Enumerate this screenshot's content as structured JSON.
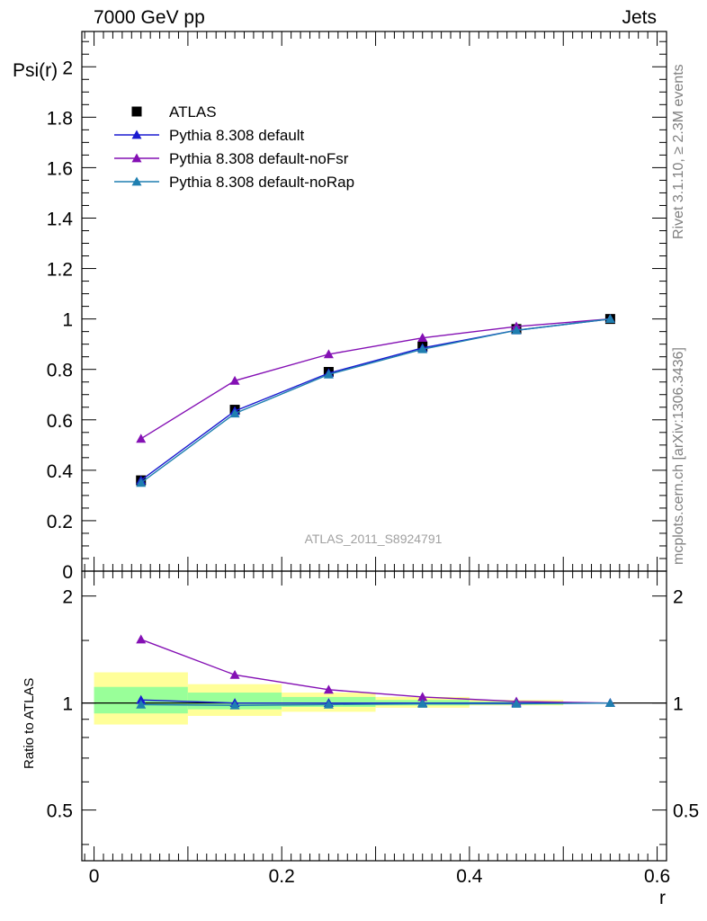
{
  "header": {
    "left_title": "7000 GeV pp",
    "right_title": "Jets"
  },
  "side_labels": {
    "rivet": "Rivet 3.1.10, ≥ 2.3M events",
    "mcplots": "mcplots.cern.ch [arXiv:1306.3436]"
  },
  "chart_data": [
    {
      "type": "line",
      "panel": "main",
      "ylabel": "Psi(r)",
      "watermark": "ATLAS_2011_S8924791",
      "xlim": [
        -0.013,
        0.61
      ],
      "ylim": [
        0,
        2.14
      ],
      "yticks": [
        0,
        0.2,
        0.4,
        0.6,
        0.8,
        1,
        1.2,
        1.4,
        1.6,
        1.8,
        2
      ],
      "ytick_labels": [
        "0",
        "0.2",
        "0.4",
        "0.6",
        "0.8",
        "1",
        "1.2",
        "1.4",
        "1.6",
        "1.8",
        "2"
      ],
      "legend_position": "top-left",
      "x": [
        0.05,
        0.15,
        0.25,
        0.35,
        0.45,
        0.55
      ],
      "series": [
        {
          "name": "ATLAS",
          "marker": "square",
          "color": "#000000",
          "line": false,
          "values": [
            0.36,
            0.64,
            0.79,
            0.89,
            0.96,
            1.0
          ]
        },
        {
          "name": "Pythia 8.308 default",
          "marker": "triangle",
          "color": "#1a1ad0",
          "line": true,
          "values": [
            0.36,
            0.635,
            0.785,
            0.885,
            0.955,
            1.0
          ]
        },
        {
          "name": "Pythia 8.308 default-noFsr",
          "marker": "triangle",
          "color": "#8410b4",
          "line": true,
          "values": [
            0.525,
            0.755,
            0.86,
            0.925,
            0.97,
            1.0
          ]
        },
        {
          "name": "Pythia 8.308 default-noRap",
          "marker": "triangle",
          "color": "#1f7fb0",
          "line": true,
          "values": [
            0.35,
            0.625,
            0.78,
            0.88,
            0.955,
            1.0
          ]
        }
      ]
    },
    {
      "type": "line",
      "panel": "ratio",
      "xlabel": "r",
      "ylabel": "Ratio to ATLAS",
      "xlim": [
        -0.013,
        0.61
      ],
      "ylim": [
        0.36,
        2.35
      ],
      "log_scale_y": true,
      "xticks": [
        0,
        0.2,
        0.4,
        0.6
      ],
      "xtick_labels": [
        "0",
        "0.2",
        "0.4",
        "0.6"
      ],
      "yticks": [
        0.5,
        1,
        2
      ],
      "ytick_labels": [
        "0.5",
        "1",
        "2"
      ],
      "bands": {
        "x_bins": [
          [
            0.0,
            0.1
          ],
          [
            0.1,
            0.2
          ],
          [
            0.2,
            0.3
          ],
          [
            0.3,
            0.4
          ],
          [
            0.4,
            0.5
          ]
        ],
        "yellow": [
          [
            0.87,
            1.22
          ],
          [
            0.92,
            1.13
          ],
          [
            0.945,
            1.07
          ],
          [
            0.97,
            1.04
          ],
          [
            0.985,
            1.02
          ]
        ],
        "green": [
          [
            0.935,
            1.11
          ],
          [
            0.96,
            1.07
          ],
          [
            0.975,
            1.04
          ],
          [
            0.985,
            1.02
          ],
          [
            0.99,
            1.01
          ]
        ]
      },
      "x": [
        0.05,
        0.15,
        0.25,
        0.35,
        0.45,
        0.55
      ],
      "series": [
        {
          "name": "Pythia 8.308 default",
          "color": "#1a1ad0",
          "values": [
            1.02,
            1.0,
            1.0,
            1.0,
            1.0,
            1.0
          ]
        },
        {
          "name": "Pythia 8.308 default-noFsr",
          "color": "#8410b4",
          "values": [
            1.51,
            1.2,
            1.09,
            1.04,
            1.01,
            1.0
          ]
        },
        {
          "name": "Pythia 8.308 default-noRap",
          "color": "#1f7fb0",
          "values": [
            0.99,
            0.985,
            0.99,
            0.995,
            0.995,
            1.0
          ]
        }
      ]
    }
  ]
}
